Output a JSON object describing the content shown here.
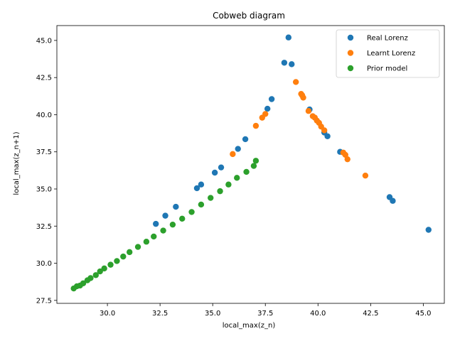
{
  "chart_data": {
    "type": "scatter",
    "title": "Cobweb diagram",
    "xlabel": "local_max(z_n)",
    "ylabel": "local_max(z_n+1)",
    "xlim": [
      27.6,
      46.0
    ],
    "ylim": [
      27.3,
      46.0
    ],
    "xticks": [
      30.0,
      32.5,
      35.0,
      37.5,
      40.0,
      42.5,
      45.0
    ],
    "yticks": [
      27.5,
      30.0,
      32.5,
      35.0,
      37.5,
      40.0,
      42.5,
      45.0
    ],
    "xtick_labels": [
      "30.0",
      "32.5",
      "35.0",
      "37.5",
      "40.0",
      "42.5",
      "45.0"
    ],
    "ytick_labels": [
      "27.5",
      "30.0",
      "32.5",
      "35.0",
      "37.5",
      "40.0",
      "42.5",
      "45.0"
    ],
    "grid": false,
    "legend_position": "top-right",
    "series": [
      {
        "name": "Real Lorenz",
        "color": "#1f77b4",
        "points": [
          [
            38.6,
            45.2
          ],
          [
            38.4,
            43.5
          ],
          [
            38.75,
            43.4
          ],
          [
            37.8,
            41.05
          ],
          [
            37.6,
            40.4
          ],
          [
            36.55,
            38.35
          ],
          [
            36.2,
            37.7
          ],
          [
            35.4,
            36.45
          ],
          [
            35.1,
            36.1
          ],
          [
            34.45,
            35.3
          ],
          [
            34.25,
            35.05
          ],
          [
            33.25,
            33.8
          ],
          [
            32.75,
            33.2
          ],
          [
            32.3,
            32.65
          ],
          [
            39.6,
            40.35
          ],
          [
            40.3,
            38.8
          ],
          [
            40.45,
            38.55
          ],
          [
            41.05,
            37.5
          ],
          [
            43.4,
            34.45
          ],
          [
            43.55,
            34.2
          ],
          [
            45.25,
            32.25
          ]
        ]
      },
      {
        "name": "Learnt Lorenz",
        "color": "#ff7f0e",
        "points": [
          [
            35.95,
            37.35
          ],
          [
            37.05,
            39.25
          ],
          [
            37.35,
            39.8
          ],
          [
            37.5,
            40.05
          ],
          [
            38.95,
            42.2
          ],
          [
            39.2,
            41.4
          ],
          [
            39.25,
            41.3
          ],
          [
            39.3,
            41.15
          ],
          [
            39.55,
            40.25
          ],
          [
            39.75,
            39.9
          ],
          [
            39.85,
            39.8
          ],
          [
            39.95,
            39.6
          ],
          [
            40.05,
            39.45
          ],
          [
            40.15,
            39.2
          ],
          [
            40.3,
            38.95
          ],
          [
            41.2,
            37.45
          ],
          [
            41.3,
            37.3
          ],
          [
            41.4,
            37.0
          ],
          [
            42.25,
            35.9
          ]
        ]
      },
      {
        "name": "Prior model",
        "color": "#2ca02c",
        "points": [
          [
            28.4,
            28.3
          ],
          [
            28.55,
            28.45
          ],
          [
            28.7,
            28.5
          ],
          [
            28.85,
            28.65
          ],
          [
            29.05,
            28.85
          ],
          [
            29.2,
            29.0
          ],
          [
            29.45,
            29.2
          ],
          [
            29.65,
            29.45
          ],
          [
            29.85,
            29.65
          ],
          [
            30.15,
            29.9
          ],
          [
            30.45,
            30.15
          ],
          [
            30.75,
            30.45
          ],
          [
            31.05,
            30.75
          ],
          [
            31.45,
            31.1
          ],
          [
            31.85,
            31.45
          ],
          [
            32.2,
            31.8
          ],
          [
            32.65,
            32.2
          ],
          [
            33.1,
            32.6
          ],
          [
            33.55,
            33.0
          ],
          [
            34.0,
            33.45
          ],
          [
            34.45,
            33.95
          ],
          [
            34.9,
            34.4
          ],
          [
            35.35,
            34.85
          ],
          [
            35.75,
            35.3
          ],
          [
            36.15,
            35.75
          ],
          [
            36.6,
            36.15
          ],
          [
            36.95,
            36.55
          ],
          [
            37.05,
            36.9
          ]
        ]
      }
    ]
  }
}
